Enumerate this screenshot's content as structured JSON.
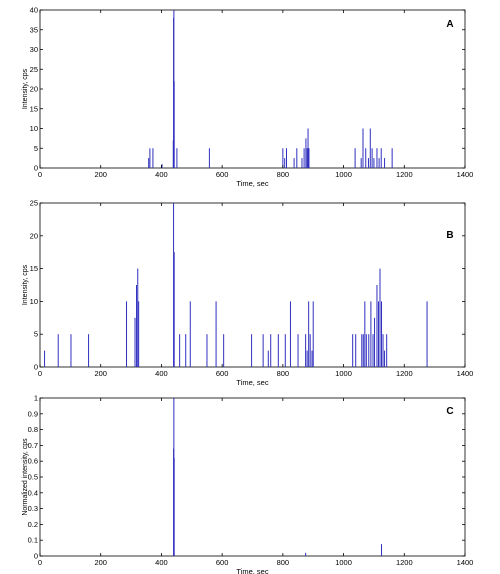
{
  "chart_data": [
    {
      "type": "bar",
      "panel_label": "A",
      "xlabel": "Time, sec",
      "ylabel": "Intensity, cps",
      "xlim": [
        0,
        1400
      ],
      "ylim": [
        0,
        40
      ],
      "xticks": [
        0,
        200,
        400,
        600,
        800,
        1000,
        1200,
        1400
      ],
      "yticks": [
        0,
        5,
        10,
        15,
        20,
        25,
        30,
        35,
        40
      ],
      "bar_color": "#2f2fbf",
      "grid": false,
      "x": [
        358,
        362,
        372,
        402,
        439,
        440,
        441,
        442,
        451,
        558,
        800,
        806,
        812,
        837,
        846,
        863,
        870,
        876,
        880,
        883,
        886,
        1038,
        1058,
        1064,
        1073,
        1082,
        1088,
        1094,
        1100,
        1110,
        1117,
        1124,
        1135,
        1160
      ],
      "values": [
        2.5,
        5,
        5,
        1,
        7,
        38,
        40,
        22,
        5,
        5,
        5,
        2.5,
        5,
        2.5,
        5,
        2.5,
        5,
        7.5,
        5,
        10,
        5,
        5,
        2.5,
        10,
        5,
        2.5,
        10,
        5,
        2.5,
        5,
        2.5,
        5,
        2.5,
        5
      ]
    },
    {
      "type": "bar",
      "panel_label": "B",
      "xlabel": "Time, sec",
      "ylabel": "Intensity, cps",
      "xlim": [
        0,
        1400
      ],
      "ylim": [
        0,
        25
      ],
      "xticks": [
        0,
        200,
        400,
        600,
        800,
        1000,
        1200,
        1400
      ],
      "yticks": [
        0,
        5,
        10,
        15,
        20,
        25
      ],
      "bar_color": "#2f2fbf",
      "grid": false,
      "x": [
        15,
        60,
        102,
        160,
        285,
        313,
        318,
        322,
        325,
        440,
        442,
        460,
        480,
        495,
        550,
        580,
        605,
        697,
        735,
        752,
        760,
        785,
        808,
        825,
        850,
        875,
        880,
        885,
        890,
        896,
        900,
        1030,
        1040,
        1060,
        1065,
        1070,
        1075,
        1083,
        1090,
        1097,
        1102,
        1110,
        1115,
        1120,
        1125,
        1130,
        1135,
        1142,
        1275
      ],
      "values": [
        2.5,
        5,
        5,
        5,
        10,
        7.5,
        12.5,
        15,
        10,
        25,
        17.5,
        5,
        5,
        10,
        5,
        10,
        5,
        5,
        5,
        2.5,
        5,
        5,
        5,
        10,
        5,
        5,
        2.5,
        10,
        5,
        2.5,
        10,
        5,
        5,
        5,
        5,
        10,
        5,
        5,
        10,
        5,
        7.5,
        12.5,
        10,
        15,
        10,
        5,
        2.5,
        5,
        10
      ]
    },
    {
      "type": "bar",
      "panel_label": "C",
      "xlabel": "Time, sec",
      "ylabel": "Normalized intensity, cps",
      "xlim": [
        0,
        1400
      ],
      "ylim": [
        0,
        1
      ],
      "xticks": [
        0,
        200,
        400,
        600,
        800,
        1000,
        1200,
        1400
      ],
      "yticks": [
        0,
        0.1,
        0.2,
        0.3,
        0.4,
        0.5,
        0.6,
        0.7,
        0.8,
        0.9,
        1
      ],
      "bar_color": "#2f2fbf",
      "grid": false,
      "x": [
        440,
        441,
        442,
        875,
        1125
      ],
      "values": [
        0.68,
        1.0,
        0.62,
        0.02,
        0.075
      ]
    }
  ]
}
